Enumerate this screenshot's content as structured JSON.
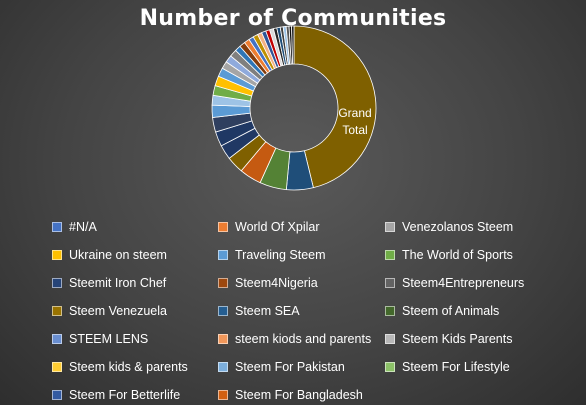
{
  "chart_data": {
    "type": "pie",
    "title": "Number of Communities",
    "center_label": "Grand Total",
    "legend_placement": "bottom",
    "categories": [
      "Grand Total"
    ],
    "series": [
      {
        "name": "Steem Venezuela",
        "value": 48,
        "color": "#7f6000"
      },
      {
        "name": "Steem SEA",
        "value": 5.5,
        "color": "#1f4e79"
      },
      {
        "name": "Steem of Animals",
        "value": 5.5,
        "color": "#548235"
      },
      {
        "name": "steem kiods and parents",
        "value": 4.5,
        "color": "#c55a11"
      },
      {
        "name": "Steem Kids Parents",
        "value": 3.5,
        "color": "#7f6000"
      },
      {
        "name": "Steem Iron Chef",
        "value": 3,
        "color": "#203864"
      },
      {
        "name": "Steem4Nigeria",
        "value": 3,
        "color": "#1f3864"
      },
      {
        "name": "Steem4Entrepreneurs",
        "value": 3,
        "color": "#2f3f5f"
      },
      {
        "name": "STEEM LENS",
        "value": 2.5,
        "color": "#5b9bd5"
      },
      {
        "name": "Steem kids & parents",
        "value": 2,
        "color": "#9dc3e6"
      },
      {
        "name": "Steem For Pakistan",
        "value": 2,
        "color": "#70ad47"
      },
      {
        "name": "Steem For Lifestyle",
        "value": 2,
        "color": "#ffc000"
      },
      {
        "name": "Steem For Betterlife",
        "value": 1.8,
        "color": "#5b9bd5"
      },
      {
        "name": "Steem For Bangladesh",
        "value": 1.5,
        "color": "#a5a5a5"
      },
      {
        "name": "The World of Sports",
        "value": 1.5,
        "color": "#8faadc"
      },
      {
        "name": "Ukraine on steem",
        "value": 1.5,
        "color": "#7f7f7f"
      },
      {
        "name": "Traveling Steem",
        "value": 1.2,
        "color": "#2e75b6"
      },
      {
        "name": "Venezolanos Steem",
        "value": 1.2,
        "color": "#843c0c"
      },
      {
        "name": "World Of Xpilar",
        "value": 1.1,
        "color": "#ed7d31"
      },
      {
        "name": "#N/A",
        "value": 1,
        "color": "#4472c4"
      }
    ],
    "extra_slices": [
      {
        "value": 1.0,
        "color": "#bf9000"
      },
      {
        "value": 0.9,
        "color": "#f4b183"
      },
      {
        "value": 0.9,
        "color": "#2f5597"
      },
      {
        "value": 0.8,
        "color": "#c00000"
      },
      {
        "value": 0.8,
        "color": "#d9d9d9"
      },
      {
        "value": 0.7,
        "color": "#262626"
      },
      {
        "value": 0.7,
        "color": "#1f4e79"
      },
      {
        "value": 0.6,
        "color": "#404040"
      },
      {
        "value": 0.6,
        "color": "#9dc3e6"
      },
      {
        "value": 0.6,
        "color": "#595959"
      },
      {
        "value": 0.5,
        "color": "#0d0d0d"
      },
      {
        "value": 0.5,
        "color": "#1a1a1a"
      }
    ],
    "legend": [
      {
        "name": "#N/A",
        "color": "#4472c4"
      },
      {
        "name": "World Of Xpilar",
        "color": "#ed7d31"
      },
      {
        "name": "Venezolanos Steem",
        "color": "#a5a5a5"
      },
      {
        "name": "Ukraine on steem",
        "color": "#ffc000"
      },
      {
        "name": "Traveling Steem",
        "color": "#5b9bd5"
      },
      {
        "name": "The World of Sports",
        "color": "#70ad47"
      },
      {
        "name": "Steemit Iron Chef",
        "color": "#264478"
      },
      {
        "name": "Steem4Nigeria",
        "color": "#9e480e"
      },
      {
        "name": "Steem4Entrepreneurs",
        "color": "#636363"
      },
      {
        "name": "Steem Venezuela",
        "color": "#997300"
      },
      {
        "name": "Steem SEA",
        "color": "#255e91"
      },
      {
        "name": "Steem of Animals",
        "color": "#43682b"
      },
      {
        "name": "STEEM LENS",
        "color": "#698ed0"
      },
      {
        "name": "steem kiods and parents",
        "color": "#f1975a"
      },
      {
        "name": "Steem Kids Parents",
        "color": "#b7b7b7"
      },
      {
        "name": "Steem kids & parents",
        "color": "#ffcd33"
      },
      {
        "name": "Steem For Pakistan",
        "color": "#7cafdd"
      },
      {
        "name": "Steem For Lifestyle",
        "color": "#8cc168"
      },
      {
        "name": "Steem For Betterlife",
        "color": "#335aa1"
      },
      {
        "name": "Steem For Bangladesh",
        "color": "#d26012"
      }
    ]
  }
}
